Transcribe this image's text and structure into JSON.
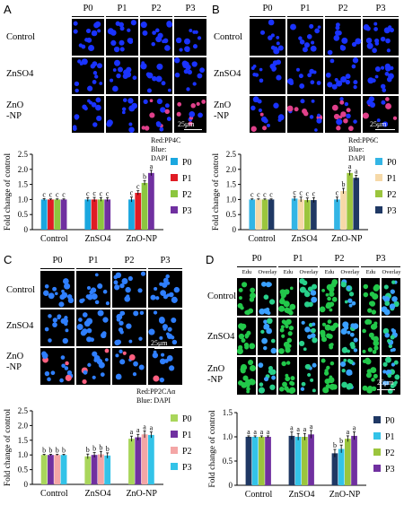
{
  "figure": {
    "panels": [
      {
        "label": "A",
        "columns": [
          "P0",
          "P1",
          "P2",
          "P3"
        ],
        "rows": [
          "Control",
          "ZnSO4",
          "ZnO\n-NP"
        ],
        "scale_bar": "25μm",
        "stain_note": [
          "Red:PP4C",
          "Blue: DAPI"
        ]
      },
      {
        "label": "B",
        "columns": [
          "P0",
          "P1",
          "P2",
          "P3"
        ],
        "rows": [
          "Control",
          "ZnSO4",
          "ZnO\n-NP"
        ],
        "scale_bar": "25μm",
        "stain_note": [
          "Red:PP6C",
          "Blue: DAPI"
        ]
      },
      {
        "label": "C",
        "columns": [
          "P0",
          "P1",
          "P2",
          "P3"
        ],
        "rows": [
          "Control",
          "ZnSO4",
          "ZnO\n-NP"
        ],
        "scale_bar": "25μm",
        "stain_note": [
          "Red:PP2CAα",
          "Blue: DAPI"
        ]
      },
      {
        "label": "D",
        "columns": [
          "P0",
          "P1",
          "P2",
          "P3"
        ],
        "subcolumns": [
          "Edu",
          "Overlay"
        ],
        "rows": [
          "Control",
          "ZnSO4",
          "ZnO\n-NP"
        ],
        "scale_bar": "25μm",
        "stain_note": []
      }
    ],
    "colors": {
      "P0_A": "#1aa7df",
      "P1_A": "#e01b24",
      "P2_A": "#8cc63f",
      "P3_A": "#7030a0",
      "P0_B": "#33b5e5",
      "P1_B": "#f6d9a8",
      "P2_B": "#9bc53d",
      "P3_B": "#1f3864",
      "P0_C": "#a9d65b",
      "P1_C": "#7030a0",
      "P2_C": "#f4a6a6",
      "P3_C": "#33c3e8",
      "P0_D": "#1f3864",
      "P1_D": "#33c3e8",
      "P2_D": "#9bc53d",
      "P3_D": "#7030a0"
    }
  },
  "chart_data": [
    {
      "panel": "A",
      "type": "bar",
      "categories": [
        "Control",
        "ZnSO4",
        "ZnO-NP"
      ],
      "series": [
        {
          "name": "P0",
          "values": [
            1.0,
            1.0,
            1.0
          ],
          "errors": [
            0.03,
            0.06,
            0.08
          ],
          "letters": [
            "c",
            "c",
            "c"
          ]
        },
        {
          "name": "P1",
          "values": [
            1.0,
            1.0,
            1.22
          ],
          "errors": [
            0.02,
            0.07,
            0.07
          ],
          "letters": [
            "c",
            "c",
            "c"
          ]
        },
        {
          "name": "P2",
          "values": [
            1.0,
            1.0,
            1.55
          ],
          "errors": [
            0.02,
            0.06,
            0.07
          ],
          "letters": [
            "c",
            "c",
            "b"
          ]
        },
        {
          "name": "P3",
          "values": [
            1.0,
            1.0,
            1.88
          ],
          "errors": [
            0.02,
            0.06,
            0.09
          ],
          "letters": [
            "c",
            "c",
            "a"
          ]
        }
      ],
      "ylabel": "Fold change of control",
      "ylim": [
        0,
        2.5
      ],
      "yticks": [
        "0",
        "0.5",
        "1.0",
        "1.5",
        "2.0",
        "2.5"
      ],
      "legend": "right"
    },
    {
      "panel": "B",
      "type": "bar",
      "categories": [
        "Control",
        "ZnSO4",
        "ZnO-NP"
      ],
      "series": [
        {
          "name": "P0",
          "values": [
            1.0,
            1.03,
            1.0
          ],
          "errors": [
            0.02,
            0.07,
            0.08
          ],
          "letters": [
            "c",
            "c",
            "c"
          ]
        },
        {
          "name": "P1",
          "values": [
            1.0,
            1.0,
            1.28
          ],
          "errors": [
            0.02,
            0.08,
            0.09
          ],
          "letters": [
            "c",
            "c",
            "b"
          ]
        },
        {
          "name": "P2",
          "values": [
            1.0,
            0.98,
            1.88
          ],
          "errors": [
            0.02,
            0.07,
            0.08
          ],
          "letters": [
            "c",
            "c",
            "a"
          ]
        },
        {
          "name": "P3",
          "values": [
            1.0,
            0.98,
            1.72
          ],
          "errors": [
            0.02,
            0.08,
            0.08
          ],
          "letters": [
            "c",
            "c",
            "a"
          ]
        }
      ],
      "ylabel": "Fold change of control",
      "ylim": [
        0,
        2.5
      ],
      "yticks": [
        "0",
        "0.5",
        "1.0",
        "1.5",
        "2.0",
        "2.5"
      ],
      "legend": "right"
    },
    {
      "panel": "C",
      "type": "bar",
      "categories": [
        "Control",
        "ZnSO4",
        "ZnO-NP"
      ],
      "series": [
        {
          "name": "P0",
          "values": [
            1.0,
            0.95,
            1.55
          ],
          "errors": [
            0.02,
            0.08,
            0.09
          ],
          "letters": [
            "b",
            "b",
            "a"
          ]
        },
        {
          "name": "P1",
          "values": [
            1.0,
            1.0,
            1.6
          ],
          "errors": [
            0.02,
            0.08,
            0.1
          ],
          "letters": [
            "b",
            "b",
            "a"
          ]
        },
        {
          "name": "P2",
          "values": [
            1.0,
            1.02,
            1.7
          ],
          "errors": [
            0.02,
            0.1,
            0.12
          ],
          "letters": [
            "b",
            "b",
            "a"
          ]
        },
        {
          "name": "P3",
          "values": [
            1.0,
            0.98,
            1.68
          ],
          "errors": [
            0.02,
            0.09,
            0.1
          ],
          "letters": [
            "b",
            "b",
            "a"
          ]
        }
      ],
      "ylabel": "Fold change of control",
      "ylim": [
        0,
        2.5
      ],
      "yticks": [
        "0",
        "0.5",
        "1.0",
        "1.5",
        "2.0",
        "2.5"
      ],
      "legend": "right"
    },
    {
      "panel": "D",
      "type": "bar",
      "categories": [
        "Control",
        "ZnSO4",
        "ZnO-NP"
      ],
      "series": [
        {
          "name": "P0",
          "values": [
            1.0,
            1.02,
            0.66
          ],
          "errors": [
            0.02,
            0.08,
            0.08
          ],
          "letters": [
            "a",
            "a",
            "b"
          ]
        },
        {
          "name": "P1",
          "values": [
            1.0,
            1.0,
            0.75
          ],
          "errors": [
            0.02,
            0.07,
            0.08
          ],
          "letters": [
            "a",
            "a",
            "b"
          ]
        },
        {
          "name": "P2",
          "values": [
            1.0,
            1.0,
            0.96
          ],
          "errors": [
            0.02,
            0.07,
            0.06
          ],
          "letters": [
            "a",
            "a",
            "a"
          ]
        },
        {
          "name": "P3",
          "values": [
            1.0,
            1.05,
            1.02
          ],
          "errors": [
            0.02,
            0.08,
            0.08
          ],
          "letters": [
            "a",
            "a",
            "a"
          ]
        }
      ],
      "ylabel": "Fold change of control",
      "ylim": [
        0,
        1.5
      ],
      "yticks": [
        "0",
        "0.5",
        "1.0",
        "1.5"
      ],
      "legend": "right"
    }
  ]
}
